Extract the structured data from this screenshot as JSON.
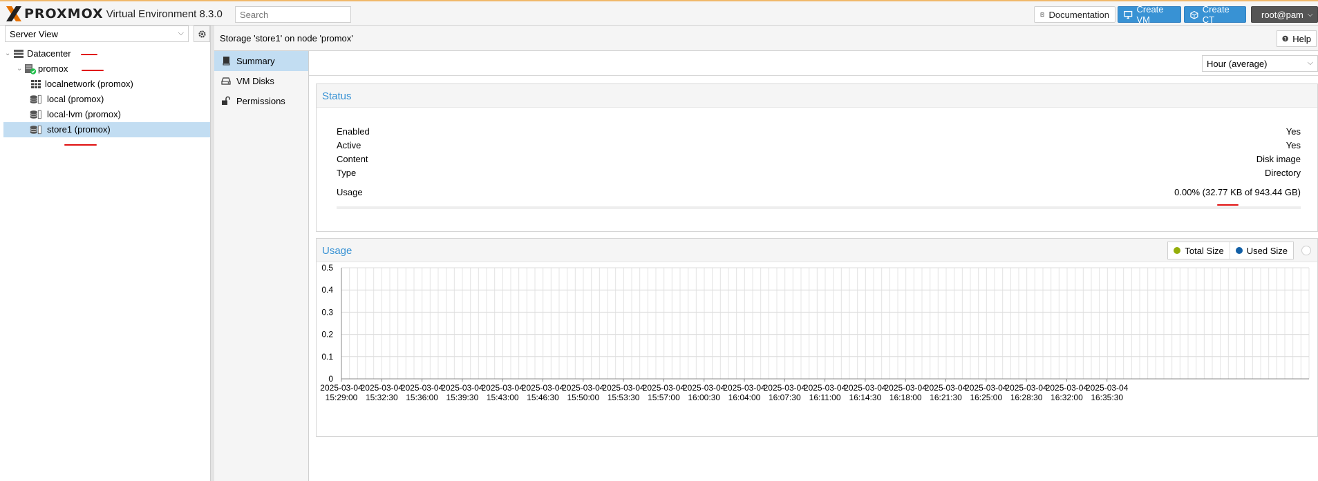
{
  "topbar": {
    "brand": "PROXMOX",
    "product": "Virtual Environment 8.3.0",
    "search_placeholder": "Search",
    "documentation_label": "Documentation",
    "create_vm_label": "Create VM",
    "create_ct_label": "Create CT",
    "user_label": "root@pam",
    "brand_color": "#e57000",
    "accent_color": "#3892d4"
  },
  "sidebar": {
    "view_selector": "Server View",
    "tree": [
      {
        "label": "Datacenter",
        "icon": "server-rack-icon",
        "level": 0
      },
      {
        "label": "promox",
        "icon": "node-online-icon",
        "level": 1
      },
      {
        "label": "localnetwork (promox)",
        "icon": "sdn-grid-icon",
        "level": 2
      },
      {
        "label": "local (promox)",
        "icon": "storage-icon",
        "level": 2
      },
      {
        "label": "local-lvm (promox)",
        "icon": "storage-icon",
        "level": 2
      },
      {
        "label": "store1 (promox)",
        "icon": "storage-icon",
        "level": 2,
        "selected": true
      }
    ]
  },
  "content": {
    "title": "Storage 'store1' on node 'promox'",
    "help_label": "Help",
    "nav": [
      {
        "label": "Summary",
        "icon": "book-icon",
        "selected": true
      },
      {
        "label": "VM Disks",
        "icon": "hdd-icon"
      },
      {
        "label": "Permissions",
        "icon": "unlock-icon"
      }
    ],
    "timeframe": "Hour (average)"
  },
  "status": {
    "title": "Status",
    "rows": [
      {
        "key": "Enabled",
        "value": "Yes"
      },
      {
        "key": "Active",
        "value": "Yes"
      },
      {
        "key": "Content",
        "value": "Disk image"
      },
      {
        "key": "Type",
        "value": "Directory"
      }
    ],
    "usage_key": "Usage",
    "usage_value": "0.00% (32.77 KB of 943.44 GB)",
    "usage_fraction": 0.0
  },
  "usage": {
    "title": "Usage",
    "legend_total": "Total Size",
    "legend_used": "Used Size",
    "total_color": "#94ae0a",
    "used_color": "#115fa6"
  },
  "chart_data": {
    "type": "line",
    "title": "Usage",
    "xlabel": "",
    "ylabel": "",
    "ylim": [
      0,
      0.5
    ],
    "y_ticks": [
      "0",
      "0.1",
      "0.2",
      "0.3",
      "0.4",
      "0.5"
    ],
    "x_ticks": [
      [
        "2025-03-04",
        "15:29:00"
      ],
      [
        "2025-03-04",
        "15:32:30"
      ],
      [
        "2025-03-04",
        "15:36:00"
      ],
      [
        "2025-03-04",
        "15:39:30"
      ],
      [
        "2025-03-04",
        "15:43:00"
      ],
      [
        "2025-03-04",
        "15:46:30"
      ],
      [
        "2025-03-04",
        "15:50:00"
      ],
      [
        "2025-03-04",
        "15:53:30"
      ],
      [
        "2025-03-04",
        "15:57:00"
      ],
      [
        "2025-03-04",
        "16:00:30"
      ],
      [
        "2025-03-04",
        "16:04:00"
      ],
      [
        "2025-03-04",
        "16:07:30"
      ],
      [
        "2025-03-04",
        "16:11:00"
      ],
      [
        "2025-03-04",
        "16:14:30"
      ],
      [
        "2025-03-04",
        "16:18:00"
      ],
      [
        "2025-03-04",
        "16:21:30"
      ],
      [
        "2025-03-04",
        "16:25:00"
      ],
      [
        "2025-03-04",
        "16:28:30"
      ],
      [
        "2025-03-04",
        "16:32:00"
      ],
      [
        "2025-03-04",
        "16:35:30"
      ]
    ],
    "series": [
      {
        "name": "Total Size",
        "values": []
      },
      {
        "name": "Used Size",
        "values": []
      }
    ],
    "grid": true,
    "legend": "top-right"
  }
}
